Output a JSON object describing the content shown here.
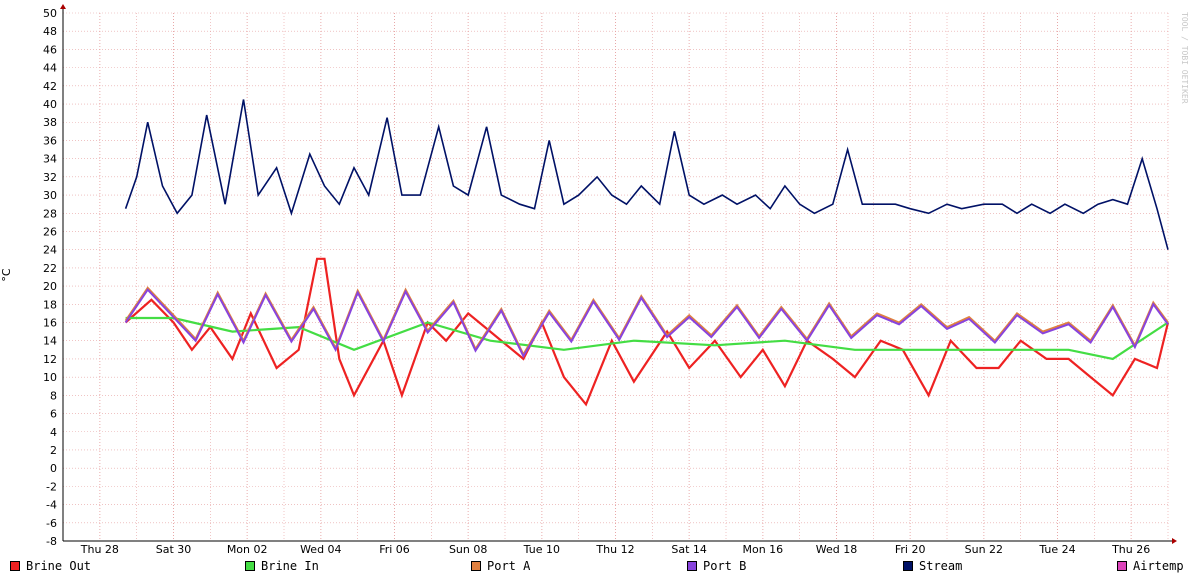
{
  "chart_data": {
    "type": "line",
    "ylabel": "°C",
    "watermark": "TOOL / TOBI OETIKER",
    "ylim": [
      -8,
      50
    ],
    "y_ticks": [
      -8,
      -6,
      -4,
      -2,
      0,
      2,
      4,
      6,
      8,
      10,
      12,
      14,
      16,
      18,
      20,
      22,
      24,
      26,
      28,
      30,
      32,
      34,
      36,
      38,
      40,
      42,
      44,
      46,
      48,
      50
    ],
    "x_ticks": [
      "Thu 28",
      "Sat 30",
      "Mon 02",
      "Wed 04",
      "Fri 06",
      "Sun 08",
      "Tue 10",
      "Thu 12",
      "Sat 14",
      "Mon 16",
      "Wed 18",
      "Fri 20",
      "Sun 22",
      "Tue 24",
      "Thu 26"
    ],
    "x_range_days": [
      0,
      30
    ],
    "grid": true,
    "series": [
      {
        "name": "Brine Out",
        "color": "#ee2222",
        "style": "area",
        "values": [
          [
            1.7,
            16
          ],
          [
            2.4,
            18.5
          ],
          [
            3.0,
            16
          ],
          [
            3.5,
            13
          ],
          [
            4.0,
            15.5
          ],
          [
            4.6,
            12
          ],
          [
            5.1,
            17
          ],
          [
            5.8,
            11
          ],
          [
            6.4,
            13
          ],
          [
            6.9,
            23
          ],
          [
            7.1,
            23
          ],
          [
            7.5,
            12
          ],
          [
            7.9,
            8
          ],
          [
            8.7,
            14
          ],
          [
            9.2,
            8
          ],
          [
            9.9,
            16
          ],
          [
            10.4,
            14
          ],
          [
            11.0,
            17
          ],
          [
            11.6,
            15
          ],
          [
            12.5,
            12
          ],
          [
            13.0,
            16
          ],
          [
            13.6,
            10
          ],
          [
            14.2,
            7
          ],
          [
            14.9,
            14
          ],
          [
            15.5,
            9.5
          ],
          [
            16.4,
            15
          ],
          [
            17.0,
            11
          ],
          [
            17.7,
            14
          ],
          [
            18.4,
            10
          ],
          [
            19.0,
            13
          ],
          [
            19.6,
            9
          ],
          [
            20.2,
            14
          ],
          [
            20.9,
            12
          ],
          [
            21.5,
            10
          ],
          [
            22.2,
            14
          ],
          [
            22.8,
            13
          ],
          [
            23.5,
            8
          ],
          [
            24.1,
            14
          ],
          [
            24.8,
            11
          ],
          [
            25.4,
            11
          ],
          [
            26.0,
            14
          ],
          [
            26.7,
            12
          ],
          [
            27.3,
            12
          ],
          [
            27.9,
            10
          ],
          [
            28.5,
            8
          ],
          [
            29.1,
            12
          ],
          [
            29.7,
            11
          ],
          [
            30.0,
            16
          ]
        ]
      },
      {
        "name": "Brine In",
        "color": "#44dd44",
        "style": "area",
        "values": [
          [
            1.7,
            16.5
          ],
          [
            3.0,
            16.5
          ],
          [
            4.6,
            15
          ],
          [
            6.4,
            15.5
          ],
          [
            7.9,
            13
          ],
          [
            9.9,
            16
          ],
          [
            11.6,
            14
          ],
          [
            13.6,
            13
          ],
          [
            15.5,
            14
          ],
          [
            17.7,
            13.5
          ],
          [
            19.6,
            14
          ],
          [
            21.5,
            13
          ],
          [
            23.5,
            13
          ],
          [
            25.4,
            13
          ],
          [
            27.3,
            13
          ],
          [
            28.5,
            12
          ],
          [
            30.0,
            16
          ]
        ]
      },
      {
        "name": "Port A",
        "color": "#e08040",
        "style": "line",
        "values": [
          [
            1.7,
            16.2
          ],
          [
            2.3,
            19.8
          ],
          [
            3.0,
            16.8
          ],
          [
            3.6,
            14.2
          ],
          [
            4.2,
            19.3
          ],
          [
            4.9,
            14.0
          ],
          [
            5.5,
            19.2
          ],
          [
            6.2,
            14.1
          ],
          [
            6.8,
            17.7
          ],
          [
            7.4,
            13.2
          ],
          [
            8.0,
            19.5
          ],
          [
            8.7,
            14.1
          ],
          [
            9.3,
            19.6
          ],
          [
            9.9,
            15.1
          ],
          [
            10.6,
            18.4
          ],
          [
            11.2,
            13.1
          ],
          [
            11.9,
            17.5
          ],
          [
            12.5,
            12.5
          ],
          [
            13.2,
            17.3
          ],
          [
            13.8,
            14.1
          ],
          [
            14.4,
            18.5
          ],
          [
            15.1,
            14.3
          ],
          [
            15.7,
            18.9
          ],
          [
            16.4,
            14.6
          ],
          [
            17.0,
            16.8
          ],
          [
            17.6,
            14.6
          ],
          [
            18.3,
            17.9
          ],
          [
            18.9,
            14.5
          ],
          [
            19.5,
            17.7
          ],
          [
            20.2,
            14.2
          ],
          [
            20.8,
            18.1
          ],
          [
            21.4,
            14.5
          ],
          [
            22.1,
            17.0
          ],
          [
            22.7,
            16.0
          ],
          [
            23.3,
            18.0
          ],
          [
            24.0,
            15.5
          ],
          [
            24.6,
            16.6
          ],
          [
            25.3,
            14.0
          ],
          [
            25.9,
            17.0
          ],
          [
            26.6,
            15.0
          ],
          [
            27.3,
            16.0
          ],
          [
            27.9,
            14.0
          ],
          [
            28.5,
            17.9
          ],
          [
            29.1,
            13.5
          ],
          [
            29.6,
            18.2
          ],
          [
            30.0,
            16.0
          ]
        ]
      },
      {
        "name": "Port B",
        "color": "#8844dd",
        "style": "line",
        "values": [
          [
            1.7,
            16
          ],
          [
            2.3,
            19.6
          ],
          [
            3.0,
            16.6
          ],
          [
            3.6,
            14
          ],
          [
            4.2,
            19.1
          ],
          [
            4.9,
            13.8
          ],
          [
            5.5,
            19
          ],
          [
            6.2,
            13.9
          ],
          [
            6.8,
            17.5
          ],
          [
            7.4,
            13
          ],
          [
            8.0,
            19.3
          ],
          [
            8.7,
            13.9
          ],
          [
            9.3,
            19.4
          ],
          [
            9.9,
            14.9
          ],
          [
            10.6,
            18.2
          ],
          [
            11.2,
            12.9
          ],
          [
            11.9,
            17.3
          ],
          [
            12.5,
            12.3
          ],
          [
            13.2,
            17.1
          ],
          [
            13.8,
            13.9
          ],
          [
            14.4,
            18.3
          ],
          [
            15.1,
            14.1
          ],
          [
            15.7,
            18.7
          ],
          [
            16.4,
            14.4
          ],
          [
            17.0,
            16.6
          ],
          [
            17.6,
            14.4
          ],
          [
            18.3,
            17.7
          ],
          [
            18.9,
            14.3
          ],
          [
            19.5,
            17.5
          ],
          [
            20.2,
            14
          ],
          [
            20.8,
            17.9
          ],
          [
            21.4,
            14.3
          ],
          [
            22.1,
            16.8
          ],
          [
            22.7,
            15.8
          ],
          [
            23.3,
            17.8
          ],
          [
            24.0,
            15.3
          ],
          [
            24.6,
            16.4
          ],
          [
            25.3,
            13.8
          ],
          [
            25.9,
            16.8
          ],
          [
            26.6,
            14.8
          ],
          [
            27.3,
            15.8
          ],
          [
            27.9,
            13.8
          ],
          [
            28.5,
            17.7
          ],
          [
            29.1,
            13.3
          ],
          [
            29.6,
            18
          ],
          [
            30.0,
            15.8
          ]
        ]
      },
      {
        "name": "Stream",
        "color": "#001166",
        "style": "line",
        "values": [
          [
            1.7,
            28.5
          ],
          [
            2.0,
            32
          ],
          [
            2.3,
            38
          ],
          [
            2.7,
            31
          ],
          [
            3.1,
            28
          ],
          [
            3.5,
            30
          ],
          [
            3.9,
            38.8
          ],
          [
            4.4,
            29
          ],
          [
            4.9,
            40.5
          ],
          [
            5.3,
            30
          ],
          [
            5.8,
            33
          ],
          [
            6.2,
            28
          ],
          [
            6.7,
            34.5
          ],
          [
            7.1,
            31
          ],
          [
            7.5,
            29
          ],
          [
            7.9,
            33
          ],
          [
            8.3,
            30
          ],
          [
            8.8,
            38.5
          ],
          [
            9.2,
            30
          ],
          [
            9.7,
            30
          ],
          [
            10.2,
            37.5
          ],
          [
            10.6,
            31
          ],
          [
            11.0,
            30
          ],
          [
            11.5,
            37.5
          ],
          [
            11.9,
            30
          ],
          [
            12.4,
            29
          ],
          [
            12.8,
            28.5
          ],
          [
            13.2,
            36
          ],
          [
            13.6,
            29
          ],
          [
            14.0,
            30
          ],
          [
            14.5,
            32
          ],
          [
            14.9,
            30
          ],
          [
            15.3,
            29
          ],
          [
            15.7,
            31
          ],
          [
            16.2,
            29
          ],
          [
            16.6,
            37
          ],
          [
            17.0,
            30
          ],
          [
            17.4,
            29
          ],
          [
            17.9,
            30
          ],
          [
            18.3,
            29
          ],
          [
            18.8,
            30
          ],
          [
            19.2,
            28.5
          ],
          [
            19.6,
            31
          ],
          [
            20.0,
            29
          ],
          [
            20.4,
            28
          ],
          [
            20.9,
            29
          ],
          [
            21.3,
            35
          ],
          [
            21.7,
            29
          ],
          [
            22.1,
            29
          ],
          [
            22.6,
            29
          ],
          [
            23.0,
            28.5
          ],
          [
            23.5,
            28
          ],
          [
            24.0,
            29
          ],
          [
            24.4,
            28.5
          ],
          [
            25.0,
            29
          ],
          [
            25.5,
            29
          ],
          [
            25.9,
            28
          ],
          [
            26.3,
            29
          ],
          [
            26.8,
            28
          ],
          [
            27.2,
            29
          ],
          [
            27.7,
            28
          ],
          [
            28.1,
            29
          ],
          [
            28.5,
            29.5
          ],
          [
            28.9,
            29
          ],
          [
            29.3,
            34
          ],
          [
            29.7,
            28.5
          ],
          [
            30.0,
            24
          ]
        ]
      },
      {
        "name": "Airtemp",
        "color": "#dd44bb",
        "style": "line",
        "values": []
      }
    ]
  },
  "legend": [
    {
      "label": "Brine Out",
      "color": "#ee2222"
    },
    {
      "label": "Brine In",
      "color": "#44dd44"
    },
    {
      "label": "Port A",
      "color": "#e08040"
    },
    {
      "label": "Port B",
      "color": "#8844dd"
    },
    {
      "label": "Stream",
      "color": "#001166"
    },
    {
      "label": "Airtemp",
      "color": "#dd44bb"
    }
  ]
}
